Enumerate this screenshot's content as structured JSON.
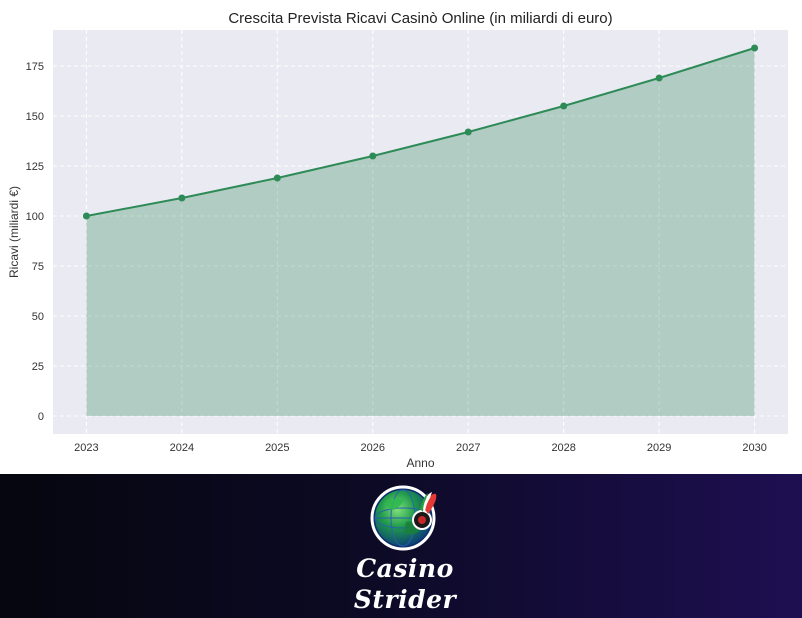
{
  "chart_data": {
    "type": "area",
    "title": "Crescita Prevista Ricavi Casinò Online (in miliardi di euro)",
    "xlabel": "Anno",
    "ylabel": "Ricavi (miliardi €)",
    "x": [
      2023,
      2024,
      2025,
      2026,
      2027,
      2028,
      2029,
      2030
    ],
    "x_tick_labels": [
      "2023",
      "2024",
      "2025",
      "2026",
      "2027",
      "2028",
      "2029",
      "2030"
    ],
    "series": [
      {
        "values": [
          100,
          109,
          119,
          130,
          142,
          155,
          169,
          184
        ]
      }
    ],
    "ylim": [
      -9,
      193
    ],
    "y_ticks": [
      0,
      25,
      50,
      75,
      100,
      125,
      150,
      175
    ],
    "y_tick_labels": [
      "0",
      "25",
      "50",
      "75",
      "100",
      "125",
      "150",
      "175"
    ],
    "grid": true,
    "colors": {
      "line": "#2e8b57",
      "fill": "#2e8b57",
      "plot_background": "#eaeaf2",
      "grid": "#ffffff"
    }
  },
  "banner": {
    "brand_line_1": "Casino",
    "brand_line_2": "Strider",
    "logo_icon": "globe-roulette-icon",
    "colors": {
      "background_start": "#05060f",
      "background_end": "#1e0f52"
    }
  }
}
